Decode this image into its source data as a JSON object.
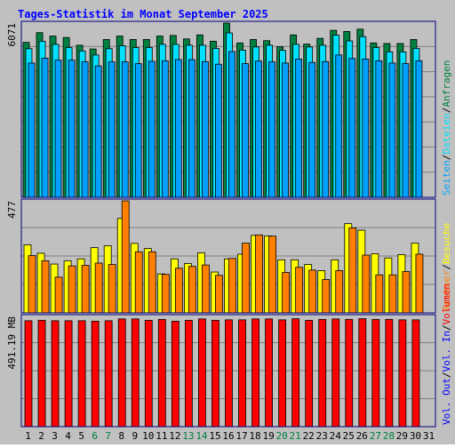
{
  "title": "Tages-Statistik im Monat September 2025",
  "colors": {
    "frame_bg": "#c0c0c0",
    "plot_bg": "#c0c0c0",
    "border": "#000080",
    "grid": "#808080",
    "title": "#0000ff",
    "weekday_label": "#000000",
    "weekend_label": "#008040",
    "anfragen": "#008040",
    "dateien": "#00e0ff",
    "seiten": "#00a0ff",
    "besuche": "#ffff00",
    "rechner": "#ff8000",
    "vol_in": "#ff0000",
    "vol_out": "#0000ff"
  },
  "chart_data": [
    {
      "type": "bar",
      "panel": "hits",
      "y_max_label": "6071",
      "ylim": [
        0,
        6071
      ],
      "grid": true,
      "legend_placement": "right",
      "legend": [
        "Anfragen",
        "Dateien",
        "Seiten"
      ],
      "categories": [
        "1",
        "2",
        "3",
        "4",
        "5",
        "6",
        "7",
        "8",
        "9",
        "10",
        "11",
        "12",
        "13",
        "14",
        "15",
        "16",
        "17",
        "18",
        "19",
        "20",
        "21",
        "22",
        "23",
        "24",
        "25",
        "26",
        "27",
        "28",
        "29",
        "30",
        "31"
      ],
      "weekend_days": [
        "6",
        "7",
        "13",
        "14",
        "20",
        "21",
        "27",
        "28"
      ],
      "series": [
        {
          "name": "Anfragen",
          "color_key": "anfragen",
          "values": [
            5400,
            5740,
            5620,
            5570,
            5300,
            5170,
            5500,
            5620,
            5500,
            5500,
            5620,
            5640,
            5520,
            5660,
            5440,
            6071,
            5380,
            5500,
            5460,
            5250,
            5660,
            5340,
            5540,
            5820,
            5780,
            5860,
            5380,
            5360,
            5360,
            5500,
            null
          ]
        },
        {
          "name": "Dateien",
          "color_key": "dateien",
          "values": [
            5180,
            5440,
            5330,
            5220,
            5100,
            4960,
            5180,
            5280,
            5220,
            5220,
            5330,
            5330,
            5300,
            5300,
            5190,
            5730,
            5130,
            5240,
            5300,
            5120,
            5330,
            5240,
            5300,
            5650,
            5450,
            5600,
            5220,
            5070,
            5070,
            5190,
            null
          ]
        },
        {
          "name": "Seiten",
          "color_key": "seiten",
          "values": [
            4680,
            4850,
            4780,
            4780,
            4720,
            4580,
            4720,
            4720,
            4660,
            4740,
            4760,
            4800,
            4800,
            4730,
            4640,
            5080,
            4660,
            4750,
            4720,
            4680,
            4820,
            4700,
            4730,
            4960,
            4840,
            4820,
            4760,
            4680,
            4660,
            4760,
            null
          ]
        }
      ]
    },
    {
      "type": "bar",
      "panel": "visits",
      "y_max_label": "477",
      "ylim": [
        0,
        477
      ],
      "grid": true,
      "legend_placement": "right",
      "legend": [
        "Besuche",
        "Rechner"
      ],
      "categories": [
        "1",
        "2",
        "3",
        "4",
        "5",
        "6",
        "7",
        "8",
        "9",
        "10",
        "11",
        "12",
        "13",
        "14",
        "15",
        "16",
        "17",
        "18",
        "19",
        "20",
        "21",
        "22",
        "23",
        "24",
        "25",
        "26",
        "27",
        "28",
        "29",
        "30",
        "31"
      ],
      "series": [
        {
          "name": "Besuche",
          "color_key": "besuche",
          "values": [
            290,
            254,
            208,
            222,
            230,
            278,
            286,
            402,
            296,
            274,
            166,
            230,
            210,
            256,
            174,
            230,
            250,
            330,
            328,
            226,
            226,
            206,
            180,
            226,
            380,
            352,
            252,
            234,
            248,
            297,
            null
          ]
        },
        {
          "name": "Rechner",
          "color_key": "rechner",
          "values": [
            244,
            222,
            152,
            200,
            202,
            212,
            206,
            477,
            260,
            260,
            164,
            190,
            198,
            204,
            160,
            232,
            297,
            332,
            327,
            172,
            194,
            182,
            142,
            180,
            362,
            246,
            162,
            162,
            176,
            250,
            null
          ]
        }
      ]
    },
    {
      "type": "bar",
      "panel": "volume",
      "y_max_label": "491.19 MB",
      "ylim": [
        0,
        491.19
      ],
      "grid": true,
      "legend_placement": "right",
      "legend": [
        "Volumen",
        "Vol. In",
        "Vol. Out"
      ],
      "categories": [
        "1",
        "2",
        "3",
        "4",
        "5",
        "6",
        "7",
        "8",
        "9",
        "10",
        "11",
        "12",
        "13",
        "14",
        "15",
        "16",
        "17",
        "18",
        "19",
        "20",
        "21",
        "22",
        "23",
        "24",
        "25",
        "26",
        "27",
        "28",
        "29",
        "30",
        "31"
      ],
      "series": [
        {
          "name": "Volumen",
          "color_key": "vol_in",
          "values": [
            472,
            474,
            472,
            472,
            472,
            470,
            472,
            480,
            480,
            474,
            478,
            470,
            474,
            480,
            474,
            476,
            476,
            480,
            480,
            476,
            481,
            474,
            478,
            480,
            478,
            481,
            478,
            478,
            476,
            476,
            null
          ]
        }
      ]
    }
  ]
}
